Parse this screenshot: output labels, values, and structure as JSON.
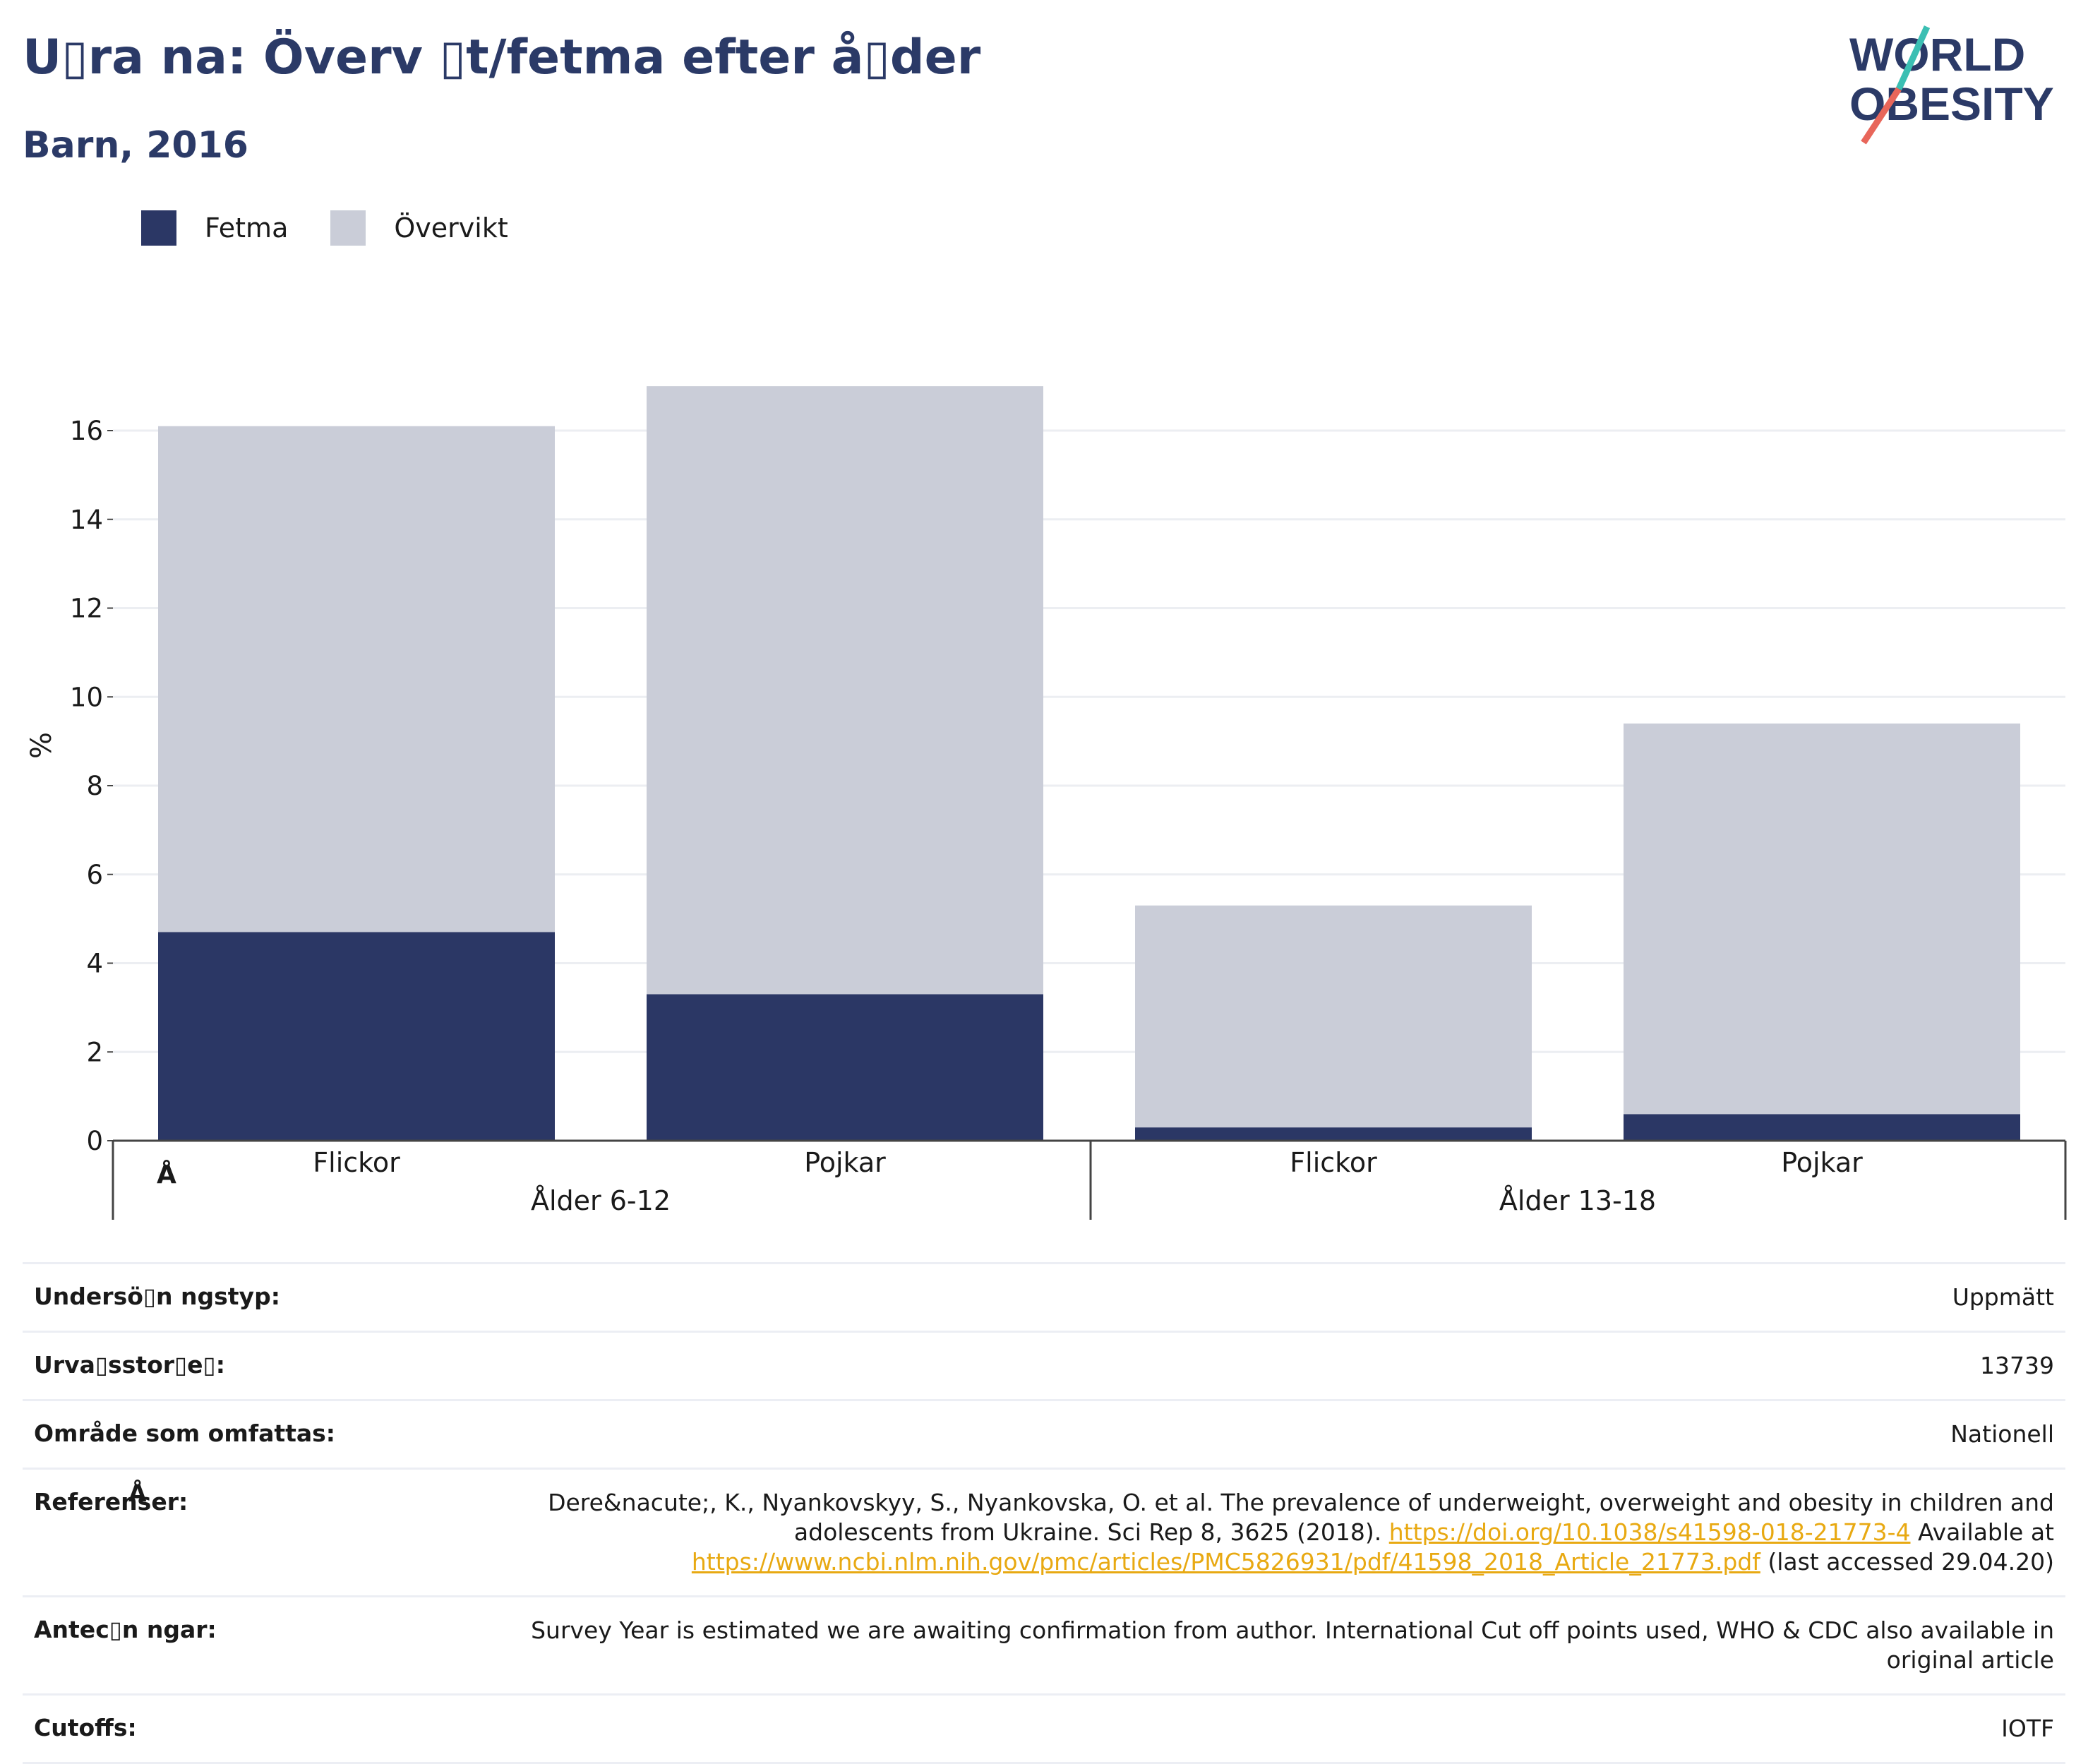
{
  "header": {
    "title": "U▯ra na: Överv ▯t/fetma efter å▯der",
    "subtitle": "Barn, 2016"
  },
  "logo": {
    "line1": "WORLD",
    "line2": "OBESITY"
  },
  "legend": [
    {
      "name": "Fetma",
      "color": "#2b3765"
    },
    {
      "name": "Övervikt",
      "color": "#cacdd8"
    }
  ],
  "chart_data": {
    "type": "bar",
    "stacked": true,
    "ylabel": "%",
    "ylim": [
      0,
      17
    ],
    "yticks": [
      0,
      2,
      4,
      6,
      8,
      10,
      12,
      14,
      16
    ],
    "grid": true,
    "legend_position": "top-left",
    "groups": [
      {
        "label": "Ålder 6-12",
        "categories": [
          "Flickor",
          "Pojkar"
        ]
      },
      {
        "label": "Ålder 13-18",
        "categories": [
          "Flickor",
          "Pojkar"
        ]
      }
    ],
    "series": [
      {
        "name": "Fetma",
        "color": "#2b3765",
        "values": [
          4.7,
          3.3,
          0.3,
          0.6
        ]
      },
      {
        "name": "Övervikt",
        "color": "#cacdd8",
        "values": [
          11.4,
          13.7,
          5.0,
          8.8
        ]
      }
    ],
    "stray_glyph": "Å"
  },
  "info": {
    "rows": [
      {
        "label": "Undersö▯n ngstyp:",
        "value": "Uppmätt"
      },
      {
        "label": "Urva▯sstor▯e▯:",
        "value": "13739"
      },
      {
        "label": "Område som omfattas:",
        "value": "Nationell"
      },
      {
        "label": "Referenser:",
        "value_parts": {
          "text1": "Dere&nacute;, K., Nyankovskyy, S., Nyankovska, O. et al. The prevalence of underweight, overweight and obesity in children and adolescents from Ukraine. Sci Rep 8, 3625 (2018). ",
          "link1": "https://doi.org/10.1038/s41598-018-21773-4",
          "text2": " Available at ",
          "link2": "https://www.ncbi.nlm.nih.gov/pmc/articles/PMC5826931/pdf/41598_2018_Article_21773.pdf",
          "text3": " (last accessed 29.04.20)"
        },
        "label_glyph": "Å"
      },
      {
        "label": "Antec▯n ngar:",
        "value": "Survey Year is estimated we are awaiting confirmation from author. International Cut off points used, WHO & CDC also available in original article"
      },
      {
        "label": "Cutoffs:",
        "value": "IOTF"
      }
    ]
  },
  "colors": {
    "accent": "#2b3a67",
    "link": "#e8a912",
    "logo_teal": "#3bbfb3",
    "logo_coral": "#e8665a"
  }
}
